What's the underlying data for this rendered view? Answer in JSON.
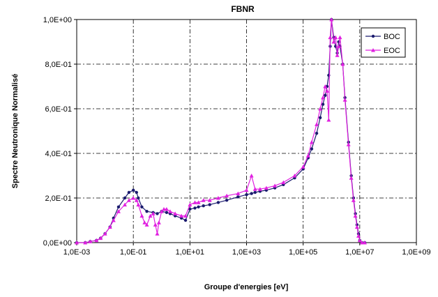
{
  "chart_data": {
    "type": "line",
    "title": "FBNR",
    "xlabel": "Groupe d'energies [eV]",
    "ylabel": "Spectre Neutronique Normalisé",
    "xscale": "log",
    "xlim": [
      0.001,
      1000000000
    ],
    "ylim": [
      0,
      1
    ],
    "x_ticks": [
      "1,0E-03",
      "1,0E-01",
      "1,0E+01",
      "1,0E+03",
      "1,0E+05",
      "1,0E+07",
      "1,0E+09"
    ],
    "y_ticks": [
      "0,0E+00",
      "2,0E-01",
      "4,0E-01",
      "6,0E-01",
      "8,0E-01",
      "1,0E+00"
    ],
    "grid": true,
    "legend": "top-right",
    "colors": {
      "BOC": "#1a1a6e",
      "EOC": "#e020e0"
    },
    "series": [
      {
        "name": "BOC",
        "marker": "circle",
        "x": [
          0.001,
          0.002,
          0.003,
          0.005,
          0.007,
          0.01,
          0.015,
          0.02,
          0.03,
          0.05,
          0.07,
          0.1,
          0.13,
          0.15,
          0.2,
          0.3,
          0.5,
          0.7,
          1,
          1.5,
          2,
          3,
          5,
          7,
          10,
          15,
          20,
          30,
          50,
          100,
          200,
          500,
          1000,
          1500,
          2000,
          3000,
          5000,
          10000,
          20000,
          50000,
          100000,
          150000,
          200000,
          300000,
          400000,
          500000,
          600000,
          700000,
          800000,
          900000,
          1000000,
          1200000,
          1400000,
          1600000,
          1800000,
          2000000,
          2500000,
          3000000,
          4000000,
          5000000,
          6000000,
          7000000,
          8000000,
          9000000,
          10000000,
          12000000,
          15000000
        ],
        "y": [
          0.0,
          0.0,
          0.005,
          0.01,
          0.02,
          0.04,
          0.07,
          0.11,
          0.16,
          0.2,
          0.225,
          0.235,
          0.225,
          0.2,
          0.16,
          0.14,
          0.135,
          0.13,
          0.14,
          0.135,
          0.13,
          0.12,
          0.11,
          0.1,
          0.15,
          0.155,
          0.16,
          0.165,
          0.17,
          0.18,
          0.19,
          0.205,
          0.215,
          0.22,
          0.225,
          0.23,
          0.235,
          0.245,
          0.26,
          0.29,
          0.33,
          0.38,
          0.42,
          0.49,
          0.56,
          0.62,
          0.66,
          0.7,
          0.75,
          0.88,
          1.0,
          0.92,
          0.88,
          0.85,
          0.9,
          0.88,
          0.8,
          0.65,
          0.45,
          0.3,
          0.2,
          0.13,
          0.08,
          0.04,
          0.01,
          0.0,
          0.0
        ]
      },
      {
        "name": "EOC",
        "marker": "triangle",
        "x": [
          0.001,
          0.002,
          0.003,
          0.005,
          0.007,
          0.01,
          0.015,
          0.02,
          0.03,
          0.05,
          0.07,
          0.1,
          0.13,
          0.15,
          0.2,
          0.25,
          0.3,
          0.4,
          0.5,
          0.6,
          0.7,
          0.8,
          1,
          1.2,
          1.5,
          2,
          3,
          5,
          7,
          10,
          15,
          20,
          30,
          50,
          100,
          200,
          500,
          1000,
          1500,
          2000,
          3000,
          5000,
          10000,
          20000,
          50000,
          100000,
          150000,
          200000,
          300000,
          400000,
          500000,
          600000,
          700000,
          800000,
          900000,
          1000000,
          1200000,
          1400000,
          1600000,
          1800000,
          2000000,
          2500000,
          3000000,
          4000000,
          5000000,
          6000000,
          7000000,
          8000000,
          9000000,
          10000000,
          12000000,
          15000000
        ],
        "y": [
          0.0,
          0.0,
          0.005,
          0.01,
          0.02,
          0.04,
          0.07,
          0.1,
          0.14,
          0.17,
          0.19,
          0.2,
          0.19,
          0.17,
          0.12,
          0.09,
          0.08,
          0.12,
          0.13,
          0.08,
          0.04,
          0.09,
          0.14,
          0.15,
          0.15,
          0.14,
          0.13,
          0.12,
          0.12,
          0.17,
          0.18,
          0.18,
          0.19,
          0.19,
          0.2,
          0.21,
          0.22,
          0.235,
          0.3,
          0.24,
          0.24,
          0.245,
          0.255,
          0.27,
          0.3,
          0.34,
          0.39,
          0.45,
          0.53,
          0.6,
          0.65,
          0.7,
          0.68,
          0.55,
          0.92,
          1.0,
          0.9,
          0.92,
          0.84,
          0.88,
          0.92,
          0.8,
          0.64,
          0.44,
          0.29,
          0.19,
          0.12,
          0.07,
          0.03,
          0.01,
          0.0,
          0.0
        ]
      }
    ]
  }
}
